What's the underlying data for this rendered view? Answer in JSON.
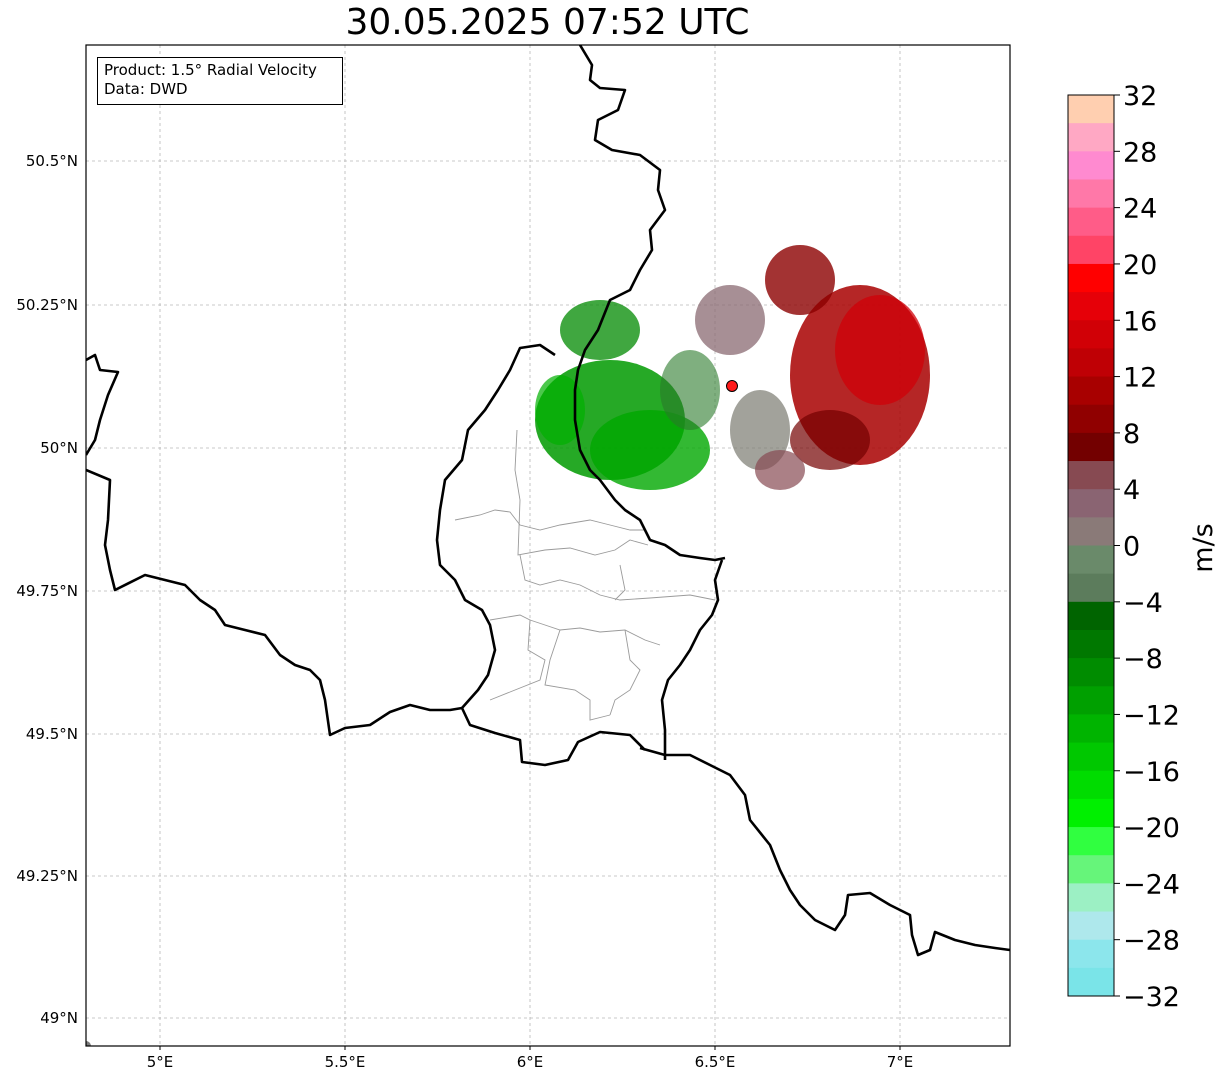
{
  "title": "30.05.2025 07:52 UTC",
  "info": {
    "product_line": "Product: 1.5° Radial Velocity",
    "data_line": "Data: DWD"
  },
  "axes": {
    "x_ticks": [
      "5°E",
      "5.5°E",
      "6°E",
      "6.5°E",
      "7°E"
    ],
    "y_ticks": [
      "49°N",
      "49.25°N",
      "49.5°N",
      "49.75°N",
      "50°N",
      "50.25°N",
      "50.5°N"
    ]
  },
  "radar_site_color": "#ff1a1a",
  "colorbar": {
    "unit": "m/s",
    "tick_labels": [
      "32",
      "28",
      "24",
      "20",
      "16",
      "12",
      "8",
      "4",
      "0",
      "−4",
      "−8",
      "−12",
      "−16",
      "−20",
      "−24",
      "−28",
      "−32"
    ],
    "range": [
      -32,
      32
    ],
    "colors_top_to_bottom": [
      "#ffcfb0",
      "#ffa8c4",
      "#ff8ad0",
      "#ff78a8",
      "#ff5c88",
      "#ff4466",
      "#ff0000",
      "#e60008",
      "#d10006",
      "#bf0005",
      "#a80000",
      "#900000",
      "#730000",
      "#874a52",
      "#8a6472",
      "#8a7a78",
      "#6a8a6a",
      "#5c7c5c",
      "#006400",
      "#007800",
      "#008c00",
      "#00a000",
      "#00b400",
      "#00c800",
      "#00dc00",
      "#00f000",
      "#30ff40",
      "#66f57a",
      "#9cf0c4",
      "#aee8ec",
      "#8ce6ec",
      "#7ae4e8"
    ]
  }
}
